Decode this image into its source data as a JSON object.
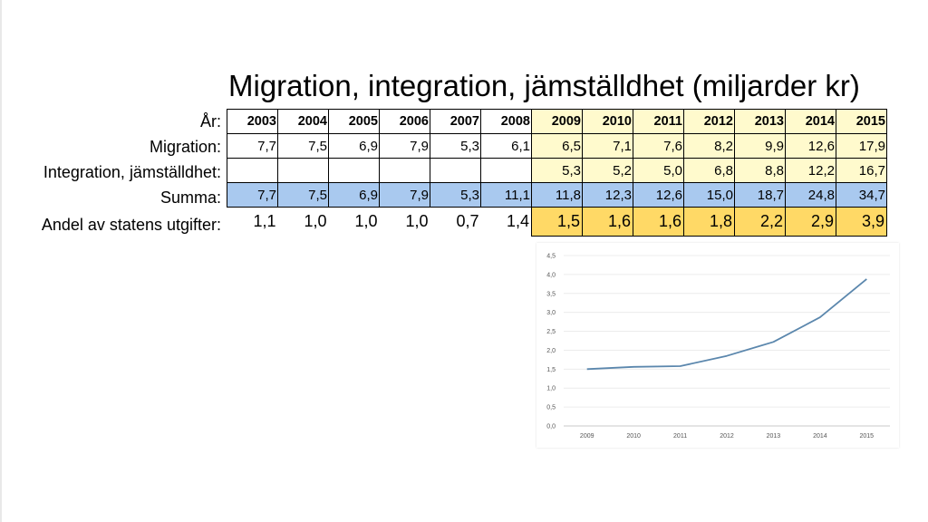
{
  "title": "Migration, integration, jämställdhet (miljarder kr)",
  "row_labels": {
    "year": "År:",
    "migration": "Migration:",
    "integration": "Integration, jämställdhet:",
    "sum": "Summa:",
    "share": "Andel av statens utgifter:"
  },
  "table": {
    "years": [
      "2003",
      "2004",
      "2005",
      "2006",
      "2007",
      "2008",
      "2009",
      "2010",
      "2011",
      "2012",
      "2013",
      "2014",
      "2015"
    ],
    "migration": [
      "7,7",
      "7,5",
      "6,9",
      "7,9",
      "5,3",
      "6,1",
      "6,5",
      "7,1",
      "7,6",
      "8,2",
      "9,9",
      "12,6",
      "17,9"
    ],
    "integration": [
      "",
      "",
      "",
      "",
      "",
      "",
      "5,3",
      "5,2",
      "5,0",
      "6,8",
      "8,8",
      "12,2",
      "16,7"
    ],
    "sum": [
      "7,7",
      "7,5",
      "6,9",
      "7,9",
      "5,3",
      "11,1",
      "11,8",
      "12,3",
      "12,6",
      "15,0",
      "18,7",
      "24,8",
      "34,7"
    ],
    "share": [
      "1,1",
      "1,0",
      "1,0",
      "1,0",
      "0,7",
      "1,4",
      "1,5",
      "1,6",
      "1,6",
      "1,8",
      "2,2",
      "2,9",
      "3,9"
    ]
  },
  "colors": {
    "highlight_years": "#fffacd",
    "sum_row": "#a9c9ef",
    "share_highlight": "#ffd966",
    "line": "#5b87ad"
  },
  "chart_data": {
    "type": "line",
    "x": [
      "2009",
      "2010",
      "2011",
      "2012",
      "2013",
      "2014",
      "2015"
    ],
    "series": [
      {
        "values": [
          1.5,
          1.56,
          1.58,
          1.85,
          2.22,
          2.87,
          3.88
        ]
      }
    ],
    "ylim": [
      0,
      4.5
    ],
    "ytick_labels": [
      "0,0",
      "0,5",
      "1,0",
      "1,5",
      "2,0",
      "2,5",
      "3,0",
      "3,5",
      "4,0",
      "4,5"
    ],
    "grid": true,
    "legend": "none"
  }
}
